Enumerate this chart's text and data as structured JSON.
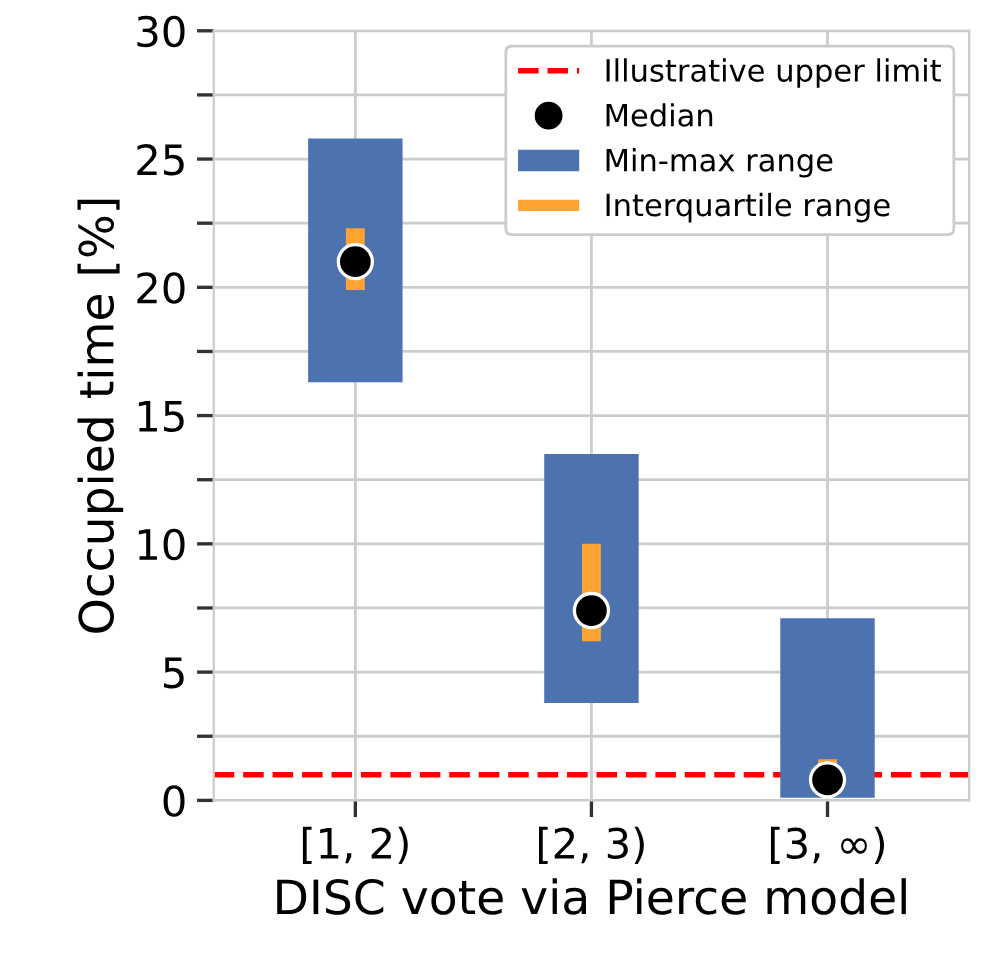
{
  "chart_data": {
    "type": "bar",
    "xlabel": "DISC vote via Pierce model",
    "ylabel": "Occupied time [%]",
    "categories": [
      "[1, 2)",
      "[2, 3)",
      "[3, ∞)"
    ],
    "series": [
      {
        "name": "Median",
        "type": "scatter",
        "color": "#000000",
        "values": [
          21.0,
          7.4,
          0.8
        ]
      },
      {
        "name": "Min-max range",
        "color": "#4c72b0",
        "base": [
          16.3,
          3.8,
          0.1
        ],
        "values": [
          9.5,
          9.7,
          7.0
        ]
      },
      {
        "name": "Interquartile range",
        "color": "#ffa333",
        "base": [
          19.9,
          6.2,
          0.9
        ],
        "values": [
          2.4,
          3.8,
          0.7
        ]
      }
    ],
    "ref_lines": [
      {
        "axis": "y",
        "value": 1,
        "label": "Illustrative upper limit",
        "color": "#ff0000",
        "line_style": "dashed"
      }
    ],
    "ylim": [
      0,
      30
    ],
    "yticks": [
      0,
      {
        "value": 2.5,
        "label": null
      },
      5,
      {
        "value": 7.5,
        "label": null
      },
      10,
      {
        "value": 12.5,
        "label": null
      },
      15,
      {
        "value": 17.5,
        "label": null
      },
      20,
      {
        "value": 22.5,
        "label": null
      },
      25,
      {
        "value": 27.5,
        "label": null
      },
      30
    ],
    "grid": true,
    "legend": "top right"
  }
}
